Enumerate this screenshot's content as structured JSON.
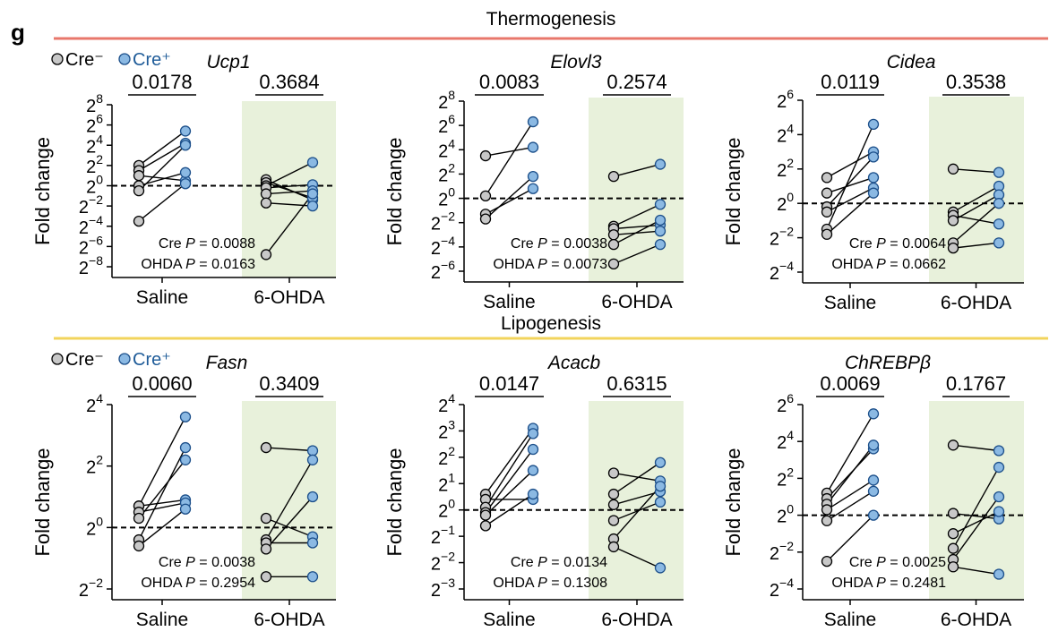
{
  "panel_letter": "g",
  "sections": [
    {
      "title": "Thermogenesis",
      "color": "#e8776b"
    },
    {
      "title": "Lipogenesis",
      "color": "#f2d45c"
    }
  ],
  "legend": {
    "cre_neg": "Cre⁻",
    "cre_pos": "Cre⁺"
  },
  "colors": {
    "cre_neg": "#c8c8c8",
    "cre_pos": "#8bb9e3",
    "shade": "#e8f1db",
    "line": "#000000"
  },
  "chart_data": [
    {
      "type": "scatter",
      "title": "Ucp1",
      "ylabel": "Fold change",
      "ylim": [
        -8,
        8
      ],
      "y_scale": "log2",
      "yticks": [
        8,
        6,
        4,
        2,
        0,
        -2,
        -4,
        -6,
        -8
      ],
      "categories": [
        "Saline",
        "6-OHDA"
      ],
      "p_values": [
        "0.0178",
        "0.3684"
      ],
      "stats": [
        "Cre P = 0.0088",
        "OHDA P = 0.0163"
      ],
      "saline": [
        [
          2,
          5.4
        ],
        [
          1.5,
          4.2
        ],
        [
          1,
          0.5
        ],
        [
          0,
          1.3
        ],
        [
          -0.5,
          4
        ],
        [
          -3.5,
          0.2
        ]
      ],
      "ohda": [
        [
          0.6,
          -1.4
        ],
        [
          0.3,
          -1.2
        ],
        [
          0,
          2.3
        ],
        [
          -0.2,
          0.1
        ],
        [
          -0.8,
          -0.5
        ],
        [
          -1.7,
          -2
        ],
        [
          -6.8,
          -0.8
        ]
      ]
    },
    {
      "type": "scatter",
      "title": "Elovl3",
      "ylabel": "Fold change",
      "ylim": [
        -6,
        8
      ],
      "y_scale": "log2",
      "yticks": [
        8,
        6,
        4,
        2,
        0,
        -2,
        -4,
        -6
      ],
      "categories": [
        "Saline",
        "6-OHDA"
      ],
      "p_values": [
        "0.0083",
        "0.2574"
      ],
      "stats": [
        "Cre P = 0.0038",
        "OHDA P = 0.0073"
      ],
      "saline": [
        [
          3.5,
          4.2
        ],
        [
          0.2,
          6.3
        ],
        [
          -1.3,
          0.8
        ],
        [
          -1.7,
          1.8
        ]
      ],
      "ohda": [
        [
          1.8,
          2.8
        ],
        [
          -2.3,
          -0.5
        ],
        [
          -2.5,
          -2.2
        ],
        [
          -3,
          -2.7
        ],
        [
          -3.8,
          -1.8
        ],
        [
          -5.4,
          -3.8
        ]
      ]
    },
    {
      "type": "scatter",
      "title": "Cidea",
      "ylabel": "Fold change",
      "ylim": [
        -4,
        6
      ],
      "y_scale": "log2",
      "yticks": [
        6,
        4,
        2,
        0,
        -2,
        -4
      ],
      "categories": [
        "Saline",
        "6-OHDA"
      ],
      "p_values": [
        "0.0119",
        "0.3538"
      ],
      "stats": [
        "Cre P = 0.0064",
        "OHDA P = 0.0662"
      ],
      "saline": [
        [
          1.5,
          3
        ],
        [
          0.6,
          1.5
        ],
        [
          -0.2,
          2.7
        ],
        [
          -0.5,
          0.9
        ],
        [
          -1.5,
          4.6
        ],
        [
          -1.8,
          0.6
        ]
      ],
      "ohda": [
        [
          2,
          1.8
        ],
        [
          -0.5,
          1
        ],
        [
          -0.7,
          -1.2
        ],
        [
          -1,
          0.5
        ],
        [
          -2.3,
          0
        ],
        [
          -2.6,
          -2.3
        ]
      ]
    },
    {
      "type": "scatter",
      "title": "Fasn",
      "ylabel": "Fold change",
      "ylim": [
        -2,
        4
      ],
      "y_scale": "log2",
      "yticks": [
        4,
        2,
        0,
        -2
      ],
      "categories": [
        "Saline",
        "6-OHDA"
      ],
      "p_values": [
        "0.0060",
        "0.3409"
      ],
      "stats": [
        "Cre P = 0.0038",
        "OHDA P = 0.2954"
      ],
      "saline": [
        [
          0.7,
          3.6
        ],
        [
          0.7,
          0.9
        ],
        [
          0.5,
          0.8
        ],
        [
          0.3,
          2.2
        ],
        [
          -0.4,
          2.6
        ],
        [
          -0.6,
          0.6
        ]
      ],
      "ohda": [
        [
          2.6,
          2.5
        ],
        [
          0.3,
          -0.3
        ],
        [
          -0.4,
          2.2
        ],
        [
          -0.5,
          -0.5
        ],
        [
          -0.7,
          1
        ],
        [
          -1.6,
          -1.6
        ]
      ]
    },
    {
      "type": "scatter",
      "title": "Acacb",
      "ylabel": "Fold change",
      "ylim": [
        -3,
        4
      ],
      "y_scale": "log2",
      "yticks": [
        4,
        3,
        2,
        1,
        0,
        -1,
        -2,
        -3
      ],
      "categories": [
        "Saline",
        "6-OHDA"
      ],
      "p_values": [
        "0.0147",
        "0.6315"
      ],
      "stats": [
        "Cre P = 0.0134",
        "OHDA P = 0.1308"
      ],
      "saline": [
        [
          0.6,
          3.1
        ],
        [
          0.4,
          0.4
        ],
        [
          0.1,
          2.9
        ],
        [
          -0.1,
          2.3
        ],
        [
          -0.2,
          1.5
        ],
        [
          -0.6,
          0.6
        ]
      ],
      "ohda": [
        [
          1.4,
          1.1
        ],
        [
          0.6,
          1.8
        ],
        [
          0.2,
          0.7
        ],
        [
          -0.4,
          0.3
        ],
        [
          -1.1,
          0.9
        ],
        [
          -1.4,
          -2.2
        ]
      ]
    },
    {
      "type": "scatter",
      "title": "ChREBPβ",
      "ylabel": "Fold change",
      "ylim": [
        -4,
        6
      ],
      "y_scale": "log2",
      "yticks": [
        6,
        4,
        2,
        0,
        -2,
        -4
      ],
      "categories": [
        "Saline",
        "6-OHDA"
      ],
      "p_values": [
        "0.0069",
        "0.1767"
      ],
      "stats": [
        "Cre P = 0.0025",
        "OHDA P = 0.2481"
      ],
      "saline": [
        [
          1.2,
          5.5
        ],
        [
          0.9,
          3.6
        ],
        [
          0.6,
          3.8
        ],
        [
          0.3,
          1.9
        ],
        [
          -0.3,
          1.3
        ],
        [
          -2.5,
          0
        ]
      ],
      "ohda": [
        [
          3.8,
          3.5
        ],
        [
          0.1,
          -0.2
        ],
        [
          -1,
          0.2
        ],
        [
          -1.8,
          2.6
        ],
        [
          -2.4,
          1
        ],
        [
          -2.8,
          -3.2
        ]
      ]
    }
  ]
}
